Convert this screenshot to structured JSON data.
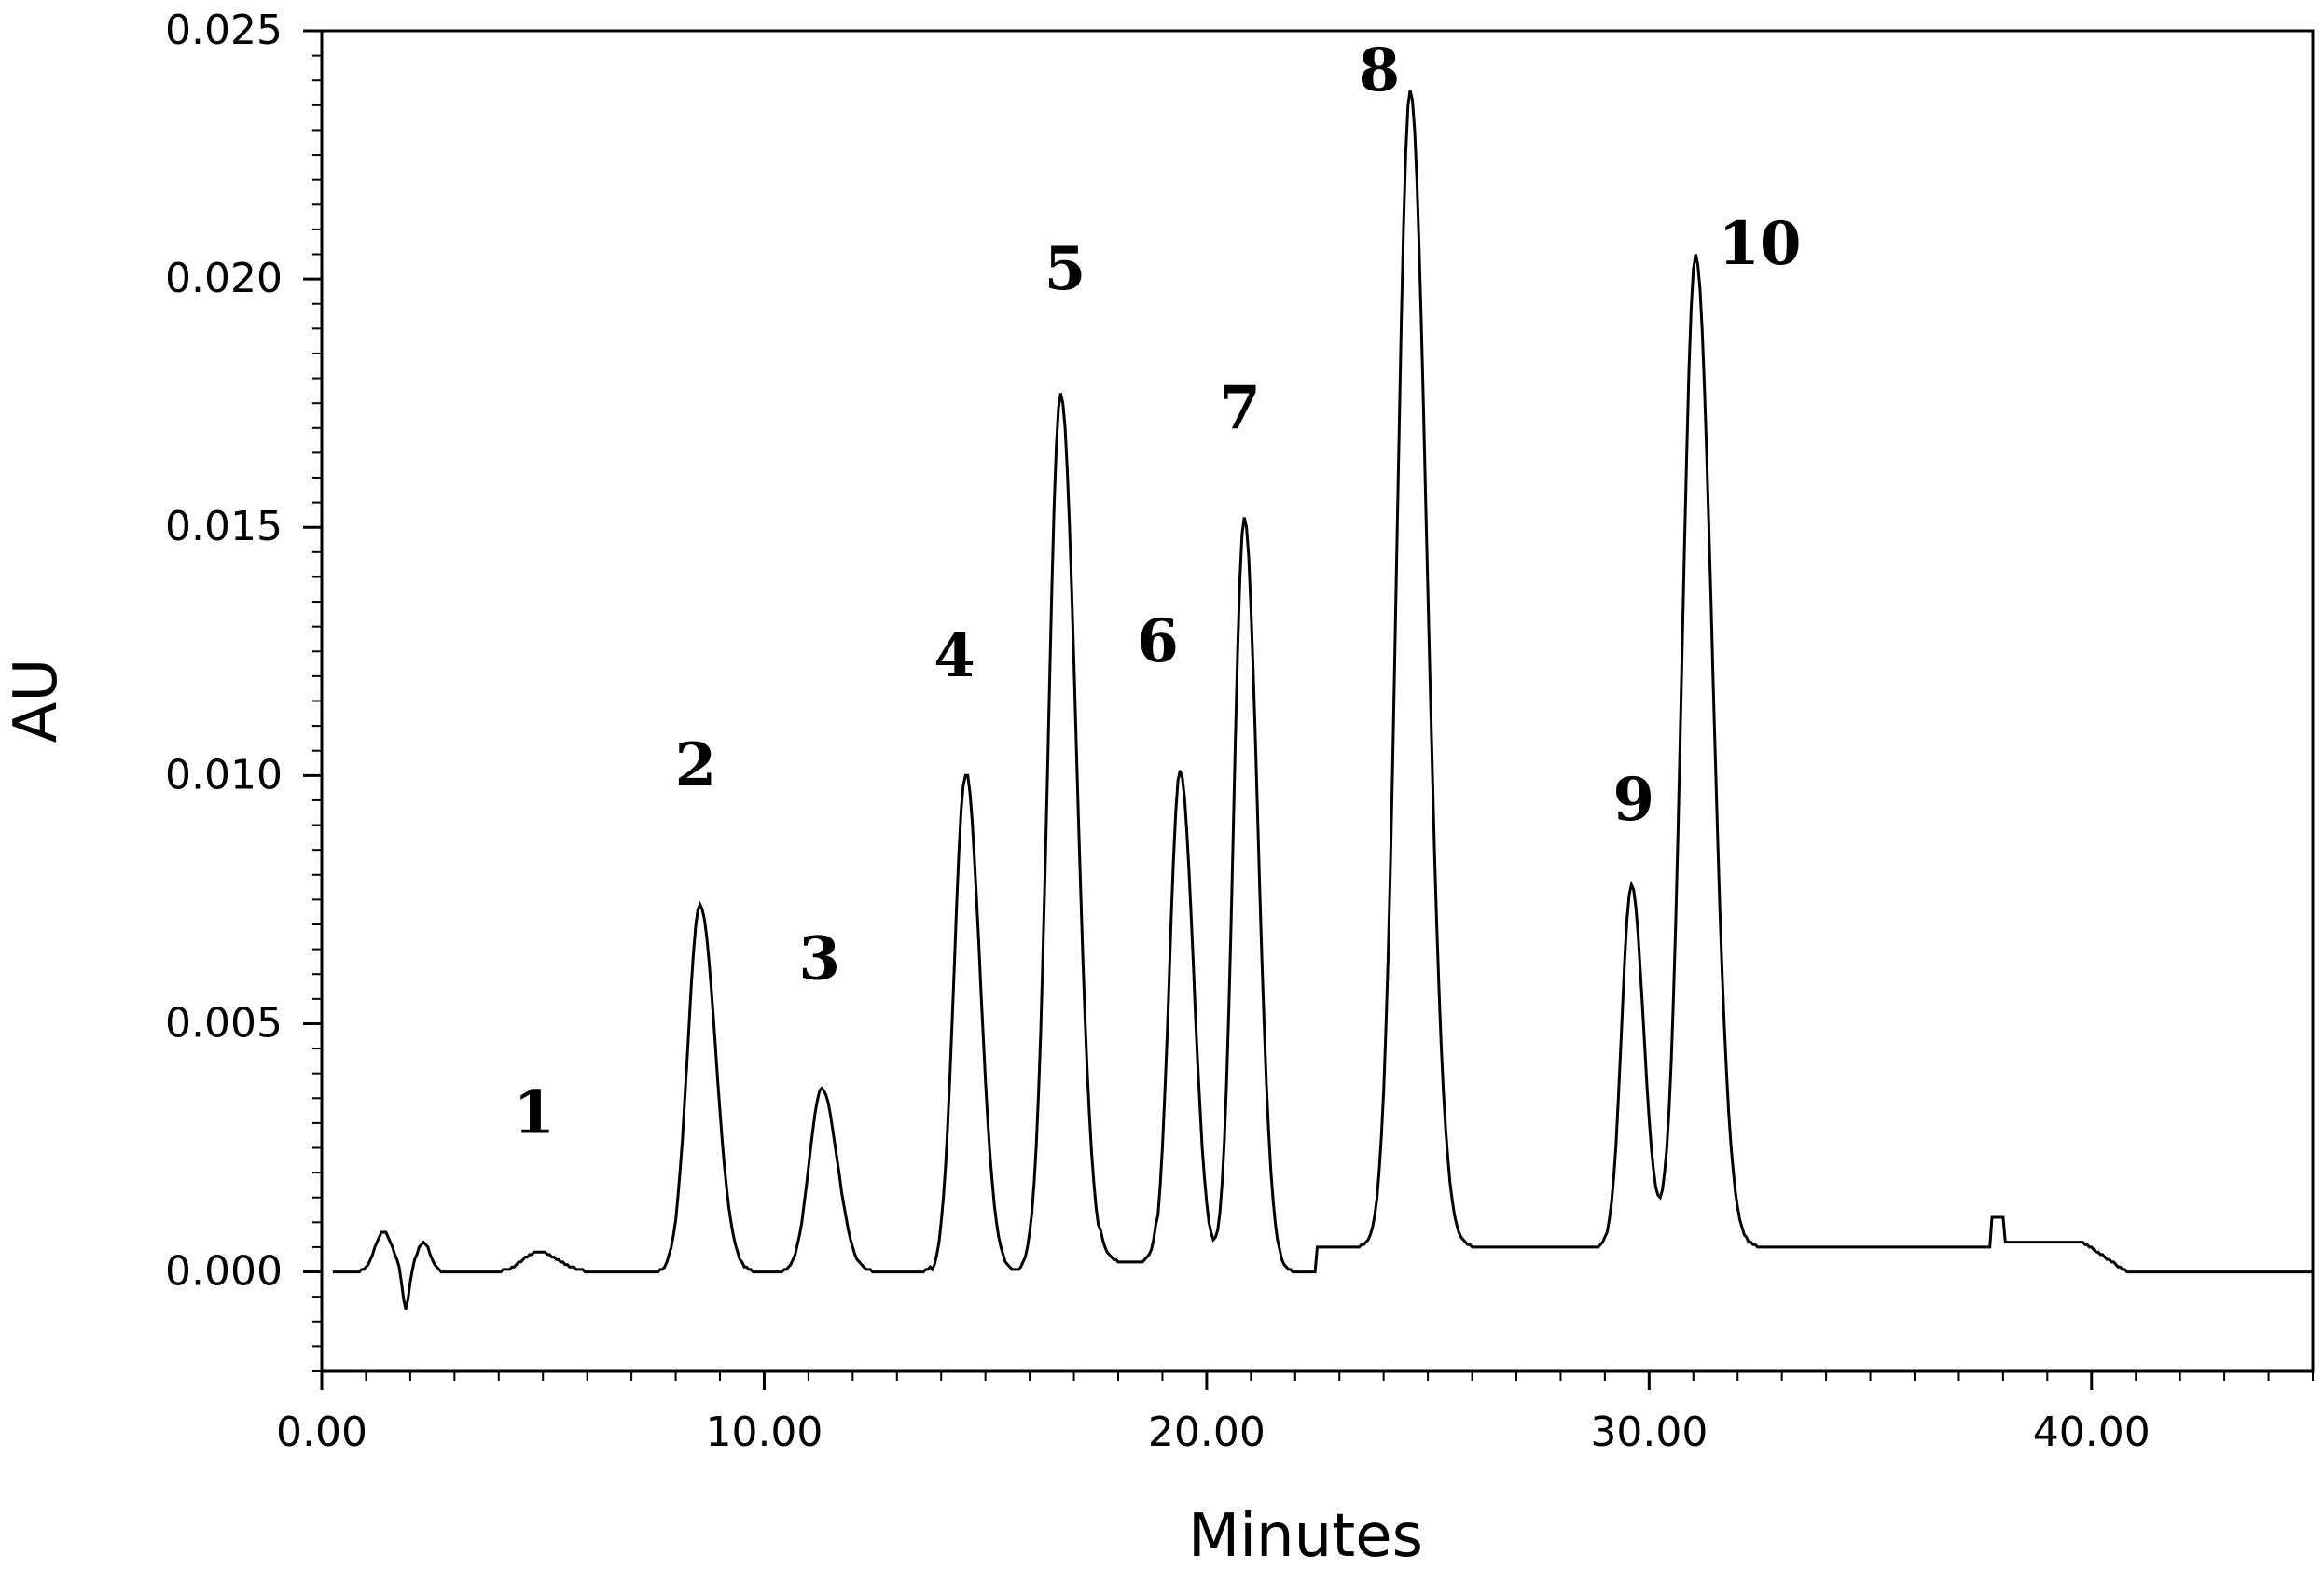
{
  "chart_data": {
    "type": "line",
    "title": "",
    "xlabel": "Minutes",
    "ylabel": "AU",
    "xlim": [
      0,
      45
    ],
    "ylim": [
      -0.002,
      0.025
    ],
    "grid": false,
    "x_ticks": [
      0,
      10,
      20,
      30,
      40
    ],
    "x_tick_labels": [
      "0.00",
      "10.00",
      "20.00",
      "30.00",
      "40.00"
    ],
    "y_ticks": [
      0.0,
      0.005,
      0.01,
      0.015,
      0.02,
      0.025
    ],
    "y_tick_labels": [
      "0.000",
      "0.005",
      "0.010",
      "0.015",
      "0.020",
      "0.025"
    ],
    "line_color": "#000000",
    "baseline": 0.0,
    "peaks": [
      {
        "label": "1",
        "x": 4.9,
        "y": 0.0004,
        "width": 0.35,
        "label_x": 4.8,
        "label_y": 0.0028
      },
      {
        "label": "2",
        "x": 8.55,
        "y": 0.0074,
        "width": 0.28,
        "label_x": 8.45,
        "label_y": 0.0098
      },
      {
        "label": "3",
        "x": 11.3,
        "y": 0.0037,
        "width": 0.28,
        "label_x": 11.25,
        "label_y": 0.0059
      },
      {
        "label": "4",
        "x": 14.55,
        "y": 0.0101,
        "width": 0.26,
        "label_x": 14.3,
        "label_y": 0.012
      },
      {
        "label": "5",
        "x": 16.7,
        "y": 0.0177,
        "width": 0.28,
        "label_x": 16.8,
        "label_y": 0.0198
      },
      {
        "label": "6",
        "x": 19.4,
        "y": 0.0101,
        "width": 0.24,
        "label_x": 18.9,
        "label_y": 0.0123
      },
      {
        "label": "7",
        "x": 20.85,
        "y": 0.0152,
        "width": 0.24,
        "label_x": 20.75,
        "label_y": 0.017
      },
      {
        "label": "8",
        "x": 24.6,
        "y": 0.0233,
        "width": 0.3,
        "label_x": 23.9,
        "label_y": 0.0238
      },
      {
        "label": "9",
        "x": 29.6,
        "y": 0.0073,
        "width": 0.22,
        "label_x": 29.65,
        "label_y": 0.0091
      },
      {
        "label": "10",
        "x": 31.05,
        "y": 0.02,
        "width": 0.3,
        "label_x": 32.5,
        "label_y": 0.0203
      }
    ]
  }
}
